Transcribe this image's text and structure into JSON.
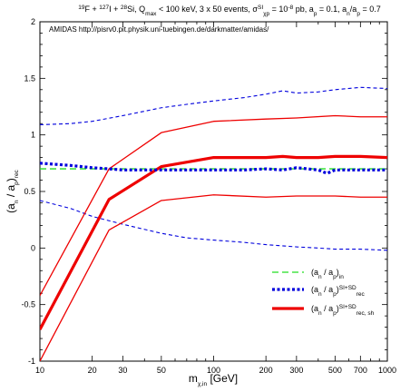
{
  "chart_data": {
    "type": "line",
    "title": "¹⁹F + ¹²⁷I + ²⁸Si, Q_max < 100 keV, 3 x 50 events, σ_χp^SI = 10⁻⁸ pb, a_p = 0.1, a_n/a_p = 0.7",
    "annotation": "AMIDAS   http://pisrv0.pit.physik.uni-tuebingen.de/darkmatter/amidas/",
    "xlabel": "m_χ,in [GeV]",
    "ylabel": "(a_n / a_p)_rec",
    "xscale": "log",
    "xlim": [
      10,
      1000
    ],
    "ylim": [
      -1,
      2
    ],
    "xticks": [
      10,
      20,
      30,
      50,
      100,
      200,
      300,
      500,
      700,
      1000
    ],
    "yticks": [
      -1,
      -0.5,
      0,
      0.5,
      1,
      1.5,
      2
    ],
    "legend_position": "lower-right",
    "colors": {
      "green": "#22dd22",
      "blue": "#0000dd",
      "red": "#ee0000"
    },
    "series": [
      {
        "name": "(a_n / a_p)_in",
        "color": "#22dd22",
        "style": "dashed-green",
        "x": [
          10,
          1000
        ],
        "y": [
          0.7,
          0.7
        ]
      },
      {
        "name": "(a_n / a_p)_rec^SI+SD",
        "color": "#0000dd",
        "style": "dotted-blue-thick",
        "x": [
          10,
          15,
          20,
          25,
          30,
          40,
          50,
          70,
          100,
          150,
          200,
          250,
          300,
          400,
          450,
          500,
          700,
          1000
        ],
        "y": [
          0.75,
          0.73,
          0.71,
          0.7,
          0.69,
          0.69,
          0.69,
          0.69,
          0.69,
          0.69,
          0.7,
          0.69,
          0.71,
          0.69,
          0.66,
          0.69,
          0.69,
          0.69
        ]
      },
      {
        "name": "upper band (SI+SD)",
        "color": "#0000dd",
        "style": "dashed-blue",
        "x": [
          10,
          15,
          20,
          30,
          50,
          70,
          100,
          150,
          200,
          250,
          300,
          400,
          500,
          700,
          1000
        ],
        "y": [
          1.09,
          1.1,
          1.12,
          1.17,
          1.24,
          1.27,
          1.3,
          1.33,
          1.36,
          1.39,
          1.37,
          1.38,
          1.4,
          1.42,
          1.41
        ]
      },
      {
        "name": "lower band (SI+SD)",
        "color": "#0000dd",
        "style": "dashed-blue",
        "x": [
          10,
          15,
          20,
          30,
          50,
          70,
          100,
          150,
          200,
          300,
          400,
          500,
          700,
          1000
        ],
        "y": [
          0.42,
          0.35,
          0.28,
          0.21,
          0.13,
          0.09,
          0.07,
          0.05,
          0.03,
          0.01,
          0.0,
          -0.01,
          -0.01,
          -0.02
        ]
      },
      {
        "name": "(a_n / a_p)_rec,sh^SI+SD",
        "color": "#ee0000",
        "style": "solid-red-thick",
        "x": [
          10,
          25,
          50,
          100,
          200,
          250,
          300,
          400,
          500,
          700,
          1000
        ],
        "y": [
          -0.72,
          0.43,
          0.72,
          0.8,
          0.8,
          0.81,
          0.8,
          0.8,
          0.81,
          0.81,
          0.8
        ]
      },
      {
        "name": "upper band (shifted)",
        "color": "#ee0000",
        "style": "solid-red-thin",
        "x": [
          10,
          25,
          50,
          100,
          200,
          300,
          500,
          700,
          1000
        ],
        "y": [
          -0.42,
          0.7,
          1.02,
          1.12,
          1.14,
          1.15,
          1.17,
          1.16,
          1.16
        ]
      },
      {
        "name": "lower band (shifted)",
        "color": "#ee0000",
        "style": "solid-red-thin",
        "x": [
          10,
          25,
          50,
          100,
          200,
          300,
          500,
          700,
          1000
        ],
        "y": [
          -1.0,
          0.16,
          0.42,
          0.47,
          0.45,
          0.46,
          0.46,
          0.45,
          0.45
        ]
      }
    ],
    "legend": [
      {
        "label": "(a_n / a_p)_in",
        "style": "dashed-green"
      },
      {
        "label": "(a_n / a_p)_rec^SI+SD",
        "style": "dotted-blue-thick"
      },
      {
        "label": "(a_n / a_p)_rec,sh^SI+SD",
        "style": "solid-red-thick"
      }
    ]
  }
}
